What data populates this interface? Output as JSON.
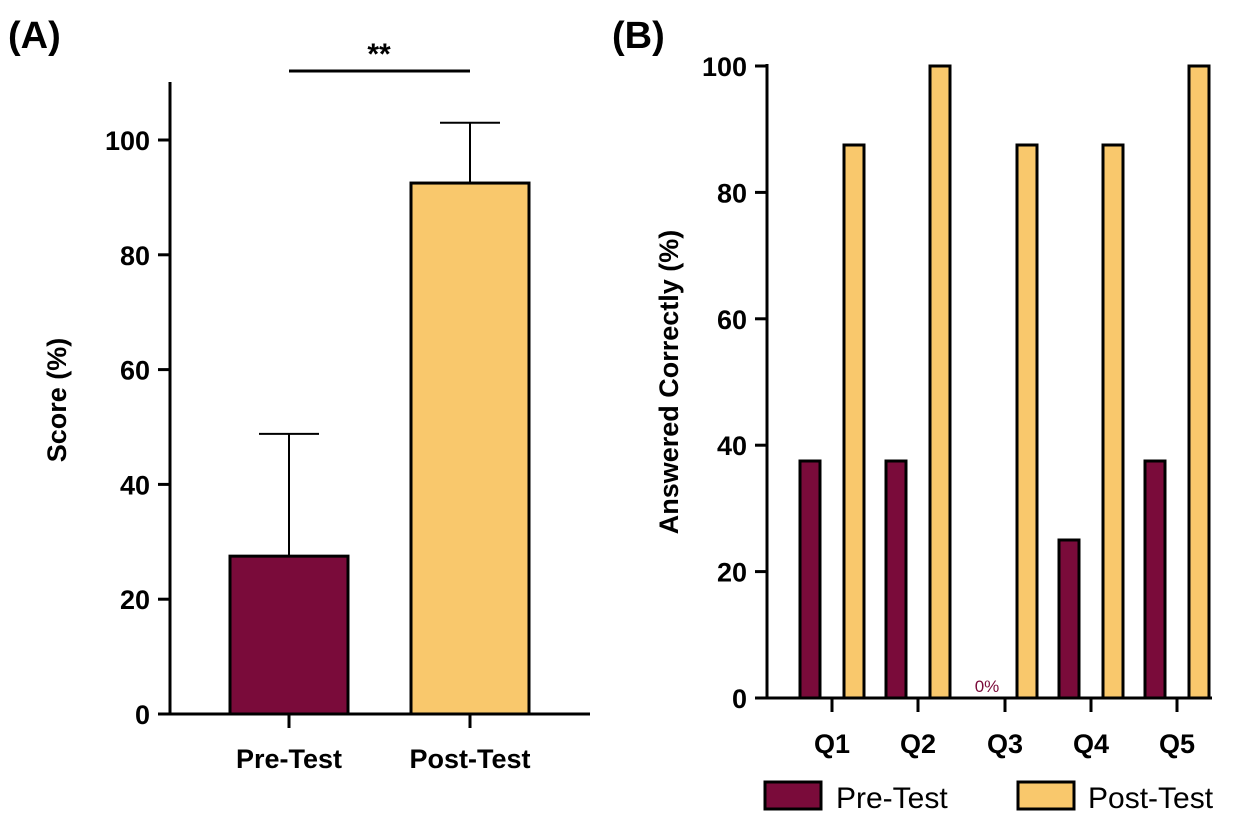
{
  "colors": {
    "pre": "#7a0b3a",
    "post": "#f9c86c",
    "stroke": "#000000"
  },
  "chart_data": [
    {
      "type": "bar",
      "panel_label": "(A)",
      "categories": [
        "Pre-Test",
        "Post-Test"
      ],
      "values": [
        27.5,
        92.5
      ],
      "error_upper": [
        48.8,
        103.0
      ],
      "ylabel": "Score (%)",
      "ylim": [
        0,
        110
      ],
      "yticks": [
        0,
        20,
        40,
        60,
        80,
        100
      ],
      "significance": "**"
    },
    {
      "type": "bar",
      "panel_label": "(B)",
      "categories": [
        "Q1",
        "Q2",
        "Q3",
        "Q4",
        "Q5"
      ],
      "series": [
        {
          "name": "Pre-Test",
          "values": [
            37.5,
            37.5,
            0,
            25,
            37.5
          ]
        },
        {
          "name": "Post-Test",
          "values": [
            87.5,
            100,
            87.5,
            87.5,
            100
          ]
        }
      ],
      "ylabel": "Answered Correctly (%)",
      "ylim": [
        0,
        100
      ],
      "yticks": [
        0,
        20,
        40,
        60,
        80,
        100
      ],
      "zero_label": "0%",
      "legend_position": "bottom"
    }
  ]
}
